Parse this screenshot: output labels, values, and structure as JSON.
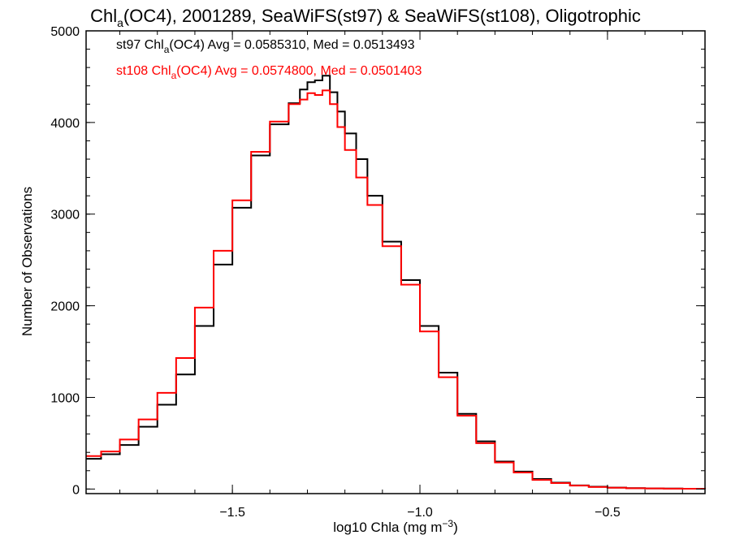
{
  "chart_data": {
    "type": "line",
    "title": {
      "pre": "Chl",
      "sub": "a",
      "post": "(OC4), 2001289, SeaWiFS(st97) & SeaWiFS(st108), Oligotrophic"
    },
    "xlabel": {
      "pre": "log10 Chla (mg m",
      "sup": "−3",
      "post": ")"
    },
    "ylabel": "Number of Observations",
    "xlim": [
      -1.89,
      -0.24
    ],
    "ylim": [
      -50,
      5000
    ],
    "xticks": [
      -1.5,
      -1.0,
      -0.5
    ],
    "xtick_labels": [
      "−1.5",
      "−1.0",
      "−0.5"
    ],
    "yticks": [
      0,
      1000,
      2000,
      3000,
      4000,
      5000
    ],
    "ytick_labels": [
      "0",
      "1000",
      "2000",
      "3000",
      "4000",
      "5000"
    ],
    "x_minor_step": 0.1,
    "y_minor_step": 200,
    "grid": false,
    "annotations": [
      {
        "pre": "st97 Chl",
        "sub": "a",
        "post": "(OC4) Avg = 0.0585310, Med = 0.0513493",
        "color": "#000000"
      },
      {
        "pre": "st108 Chl",
        "sub": "a",
        "post": "(OC4) Avg = 0.0574800, Med = 0.0501403",
        "color": "#ff0000"
      }
    ],
    "series": [
      {
        "color": "#000000",
        "x": [
          -1.89,
          -1.85,
          -1.8,
          -1.75,
          -1.7,
          -1.65,
          -1.6,
          -1.55,
          -1.5,
          -1.45,
          -1.4,
          -1.35,
          -1.32,
          -1.3,
          -1.28,
          -1.26,
          -1.24,
          -1.22,
          -1.2,
          -1.17,
          -1.14,
          -1.1,
          -1.05,
          -1.0,
          -0.95,
          -0.9,
          -0.85,
          -0.8,
          -0.75,
          -0.7,
          -0.65,
          -0.6,
          -0.55,
          -0.5,
          -0.45,
          -0.4,
          -0.35,
          -0.3,
          -0.24
        ],
        "y": [
          330,
          380,
          480,
          680,
          920,
          1250,
          1780,
          2450,
          3070,
          3640,
          3980,
          4210,
          4360,
          4440,
          4460,
          4510,
          4330,
          4120,
          3880,
          3600,
          3200,
          2700,
          2280,
          1780,
          1270,
          820,
          520,
          300,
          190,
          110,
          70,
          40,
          25,
          15,
          10,
          7,
          5,
          3,
          2
        ]
      },
      {
        "color": "#ff0000",
        "x": [
          -1.89,
          -1.85,
          -1.8,
          -1.75,
          -1.7,
          -1.65,
          -1.6,
          -1.55,
          -1.5,
          -1.45,
          -1.4,
          -1.35,
          -1.32,
          -1.3,
          -1.28,
          -1.26,
          -1.24,
          -1.22,
          -1.2,
          -1.17,
          -1.14,
          -1.1,
          -1.05,
          -1.0,
          -0.95,
          -0.9,
          -0.85,
          -0.8,
          -0.75,
          -0.7,
          -0.65,
          -0.6,
          -0.55,
          -0.5,
          -0.45,
          -0.4,
          -0.35,
          -0.3,
          -0.24
        ],
        "y": [
          360,
          410,
          540,
          760,
          1050,
          1430,
          1980,
          2600,
          3150,
          3680,
          4010,
          4200,
          4250,
          4320,
          4300,
          4350,
          4200,
          3950,
          3700,
          3400,
          3100,
          2650,
          2230,
          1720,
          1220,
          800,
          500,
          290,
          180,
          100,
          65,
          38,
          22,
          14,
          9,
          6,
          4,
          3,
          2
        ]
      }
    ]
  }
}
